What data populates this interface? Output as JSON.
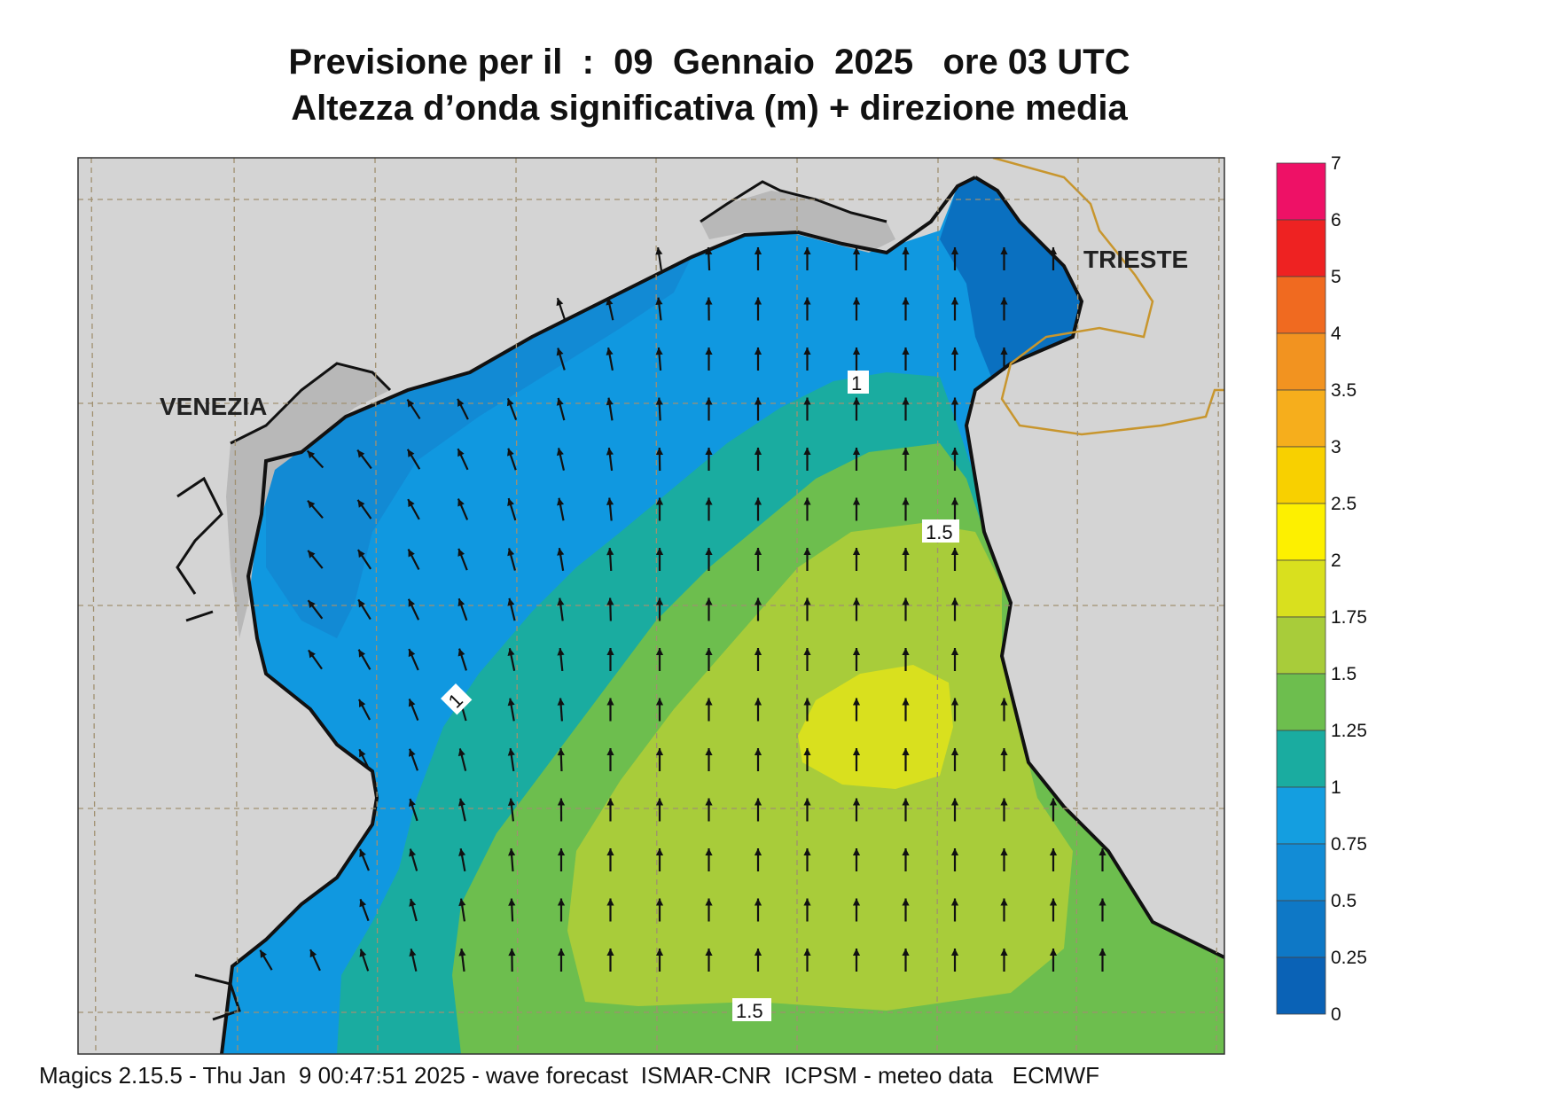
{
  "title": {
    "line1": "Previsione per il  :  09  Gennaio  2025   ore 03 UTC",
    "line2": "Altezza d’onda significativa (m) + direzione media"
  },
  "map": {
    "cities": [
      "VENEZIA",
      "TRIESTE"
    ],
    "contour_labels": [
      "1",
      "1.5",
      "1",
      "1.5"
    ],
    "colors": {
      "land": "#d4d4d4",
      "coast": "#111111",
      "border": "#c8962e",
      "grid": "#a09070"
    }
  },
  "legend": {
    "labels": [
      "7",
      "6",
      "5",
      "4",
      "3.5",
      "3",
      "2.5",
      "2",
      "1.75",
      "1.5",
      "1.25",
      "1",
      "0.75",
      "0.5",
      "0.25",
      "0"
    ],
    "colors": [
      "#ee1166",
      "#ee2222",
      "#f06a20",
      "#f29320",
      "#f6ae1c",
      "#f8d000",
      "#fdf000",
      "#d9e01e",
      "#a8cc3a",
      "#6dbe4e",
      "#1aaca0",
      "#149ee0",
      "#128cd6",
      "#0e78c6",
      "#0a62b6"
    ]
  },
  "footer": "Magics 2.15.5 - Thu Jan  9 00:47:51 2025 - wave forecast  ISMAR-CNR  ICPSM - meteo data   ECMWF"
}
